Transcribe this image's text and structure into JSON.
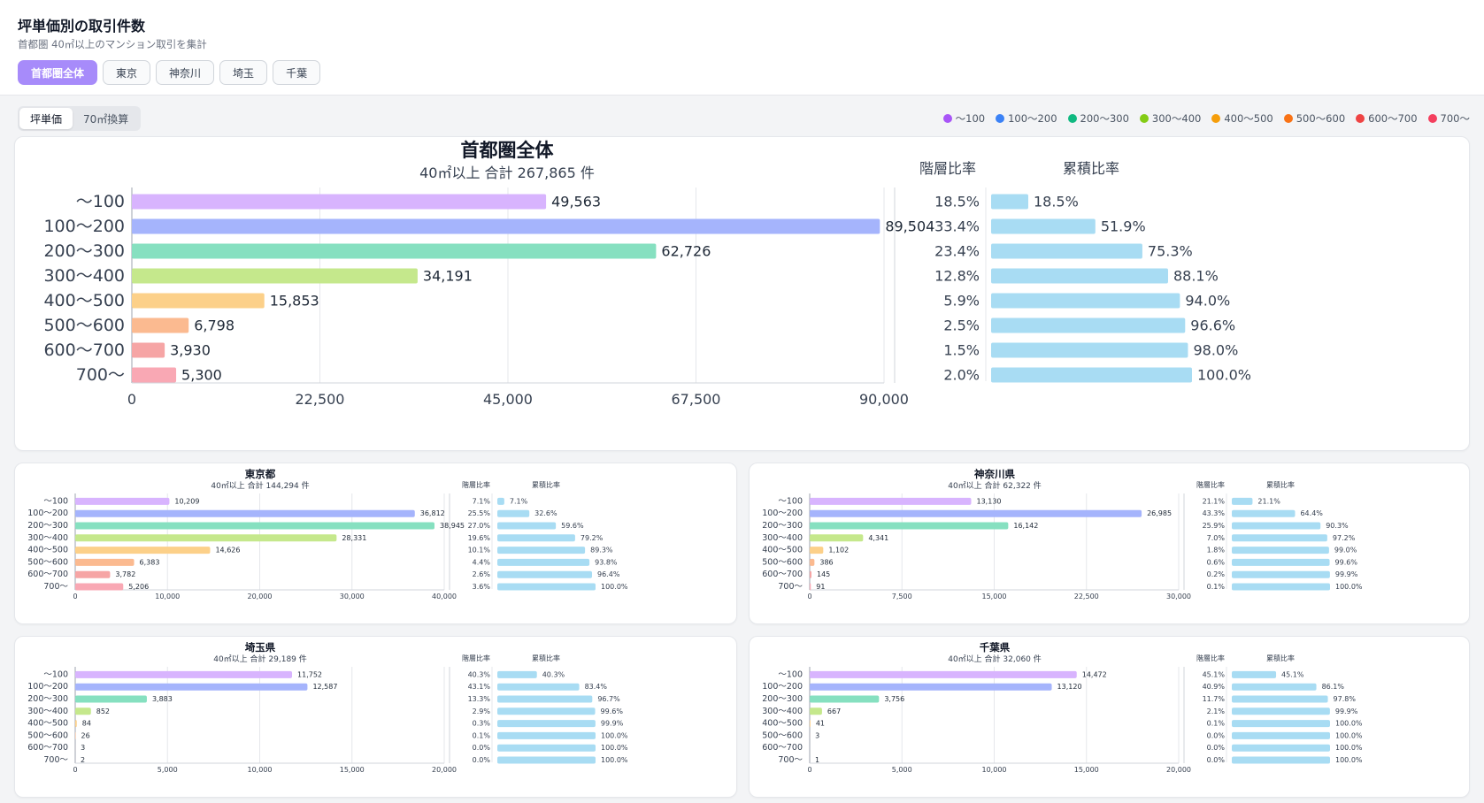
{
  "header": {
    "title": "坪単価別の取引件数",
    "subtitle": "首都圏 40㎡以上のマンション取引を集計",
    "region_tabs": [
      {
        "label": "首都圏全体",
        "active": true
      },
      {
        "label": "東京",
        "active": false
      },
      {
        "label": "神奈川",
        "active": false
      },
      {
        "label": "埼玉",
        "active": false
      },
      {
        "label": "千葉",
        "active": false
      }
    ]
  },
  "mode_tabs": [
    {
      "label": "坪単価",
      "active": true
    },
    {
      "label": "70㎡換算",
      "active": false
    }
  ],
  "legend": [
    {
      "label": "～100",
      "color": "#a855f7"
    },
    {
      "label": "100～200",
      "color": "#3b82f6"
    },
    {
      "label": "200～300",
      "color": "#10b981"
    },
    {
      "label": "300～400",
      "color": "#84cc16"
    },
    {
      "label": "400～500",
      "color": "#f59e0b"
    },
    {
      "label": "500～600",
      "color": "#f97316"
    },
    {
      "label": "600～700",
      "color": "#ef4444"
    },
    {
      "label": "700～",
      "color": "#f43f5e"
    }
  ],
  "bar_colors": [
    "#d8b4fe",
    "#a5b4fc",
    "#86e0c0",
    "#c5e88c",
    "#fcd089",
    "#fbba90",
    "#f6a5a5",
    "#f9a8b4"
  ],
  "ratio_color": "#a8dcf3",
  "chart_data": [
    {
      "type": "bar",
      "title": "首都圏全体",
      "subtitle": "40㎡以上 合計 267,865 件",
      "categories": [
        "～100",
        "100～200",
        "200～300",
        "300～400",
        "400～500",
        "500～600",
        "600～700",
        "700～"
      ],
      "values": [
        49563,
        89504,
        62726,
        34191,
        15853,
        6798,
        3930,
        5300
      ],
      "value_labels": [
        "49,563",
        "89,504",
        "62,726",
        "34,191",
        "15,853",
        "6,798",
        "3,930",
        "5,300"
      ],
      "xlim": [
        0,
        90000
      ],
      "xticks": [
        "0",
        "22,500",
        "45,000",
        "67,500",
        "90,000"
      ],
      "ratio_header": "階層比率",
      "ratio": [
        18.5,
        33.4,
        23.4,
        12.8,
        5.9,
        2.5,
        1.5,
        2.0
      ],
      "ratio_labels": [
        "18.5%",
        "33.4%",
        "23.4%",
        "12.8%",
        "5.9%",
        "2.5%",
        "1.5%",
        "2.0%"
      ],
      "cum_header": "累積比率",
      "cumulative": [
        18.5,
        51.9,
        75.3,
        88.1,
        94.0,
        96.6,
        98.0,
        100.0
      ],
      "cumulative_labels": [
        "18.5%",
        "51.9%",
        "75.3%",
        "88.1%",
        "94.0%",
        "96.6%",
        "98.0%",
        "100.0%"
      ]
    },
    {
      "type": "bar",
      "title": "東京都",
      "subtitle": "40㎡以上 合計 144,294 件",
      "categories": [
        "～100",
        "100～200",
        "200～300",
        "300～400",
        "400～500",
        "500～600",
        "600～700",
        "700～"
      ],
      "values": [
        10209,
        36812,
        38945,
        28331,
        14626,
        6383,
        3782,
        5206
      ],
      "value_labels": [
        "10,209",
        "36,812",
        "38,945",
        "28,331",
        "14,626",
        "6,383",
        "3,782",
        "5,206"
      ],
      "xlim": [
        0,
        40000
      ],
      "xticks": [
        "0",
        "10,000",
        "20,000",
        "30,000",
        "40,000"
      ],
      "ratio_header": "階層比率",
      "ratio": [
        7.1,
        25.5,
        27.0,
        19.6,
        10.1,
        4.4,
        2.6,
        3.6
      ],
      "ratio_labels": [
        "7.1%",
        "25.5%",
        "27.0%",
        "19.6%",
        "10.1%",
        "4.4%",
        "2.6%",
        "3.6%"
      ],
      "cum_header": "累積比率",
      "cumulative": [
        7.1,
        32.6,
        59.6,
        79.2,
        89.3,
        93.8,
        96.4,
        100.0
      ],
      "cumulative_labels": [
        "7.1%",
        "32.6%",
        "59.6%",
        "79.2%",
        "89.3%",
        "93.8%",
        "96.4%",
        "100.0%"
      ]
    },
    {
      "type": "bar",
      "title": "神奈川県",
      "subtitle": "40㎡以上 合計 62,322 件",
      "categories": [
        "～100",
        "100～200",
        "200～300",
        "300～400",
        "400～500",
        "500～600",
        "600～700",
        "700～"
      ],
      "values": [
        13130,
        26985,
        16142,
        4341,
        1102,
        386,
        145,
        91
      ],
      "value_labels": [
        "13,130",
        "26,985",
        "16,142",
        "4,341",
        "1,102",
        "386",
        "145",
        "91"
      ],
      "xlim": [
        0,
        30000
      ],
      "xticks": [
        "0",
        "7,500",
        "15,000",
        "22,500",
        "30,000"
      ],
      "ratio_header": "階層比率",
      "ratio": [
        21.1,
        43.3,
        25.9,
        7.0,
        1.8,
        0.6,
        0.2,
        0.1
      ],
      "ratio_labels": [
        "21.1%",
        "43.3%",
        "25.9%",
        "7.0%",
        "1.8%",
        "0.6%",
        "0.2%",
        "0.1%"
      ],
      "cum_header": "累積比率",
      "cumulative": [
        21.1,
        64.4,
        90.3,
        97.2,
        99.0,
        99.6,
        99.9,
        100.0
      ],
      "cumulative_labels": [
        "21.1%",
        "64.4%",
        "90.3%",
        "97.2%",
        "99.0%",
        "99.6%",
        "99.9%",
        "100.0%"
      ]
    },
    {
      "type": "bar",
      "title": "埼玉県",
      "subtitle": "40㎡以上 合計 29,189 件",
      "categories": [
        "～100",
        "100～200",
        "200～300",
        "300～400",
        "400～500",
        "500～600",
        "600～700",
        "700～"
      ],
      "values": [
        11752,
        12587,
        3883,
        852,
        84,
        26,
        3,
        2
      ],
      "value_labels": [
        "11,752",
        "12,587",
        "3,883",
        "852",
        "84",
        "26",
        "3",
        "2"
      ],
      "xlim": [
        0,
        20000
      ],
      "xticks": [
        "0",
        "5,000",
        "10,000",
        "15,000",
        "20,000"
      ],
      "ratio_header": "階層比率",
      "ratio": [
        40.3,
        43.1,
        13.3,
        2.9,
        0.3,
        0.1,
        0.0,
        0.0
      ],
      "ratio_labels": [
        "40.3%",
        "43.1%",
        "13.3%",
        "2.9%",
        "0.3%",
        "0.1%",
        "0.0%",
        "0.0%"
      ],
      "cum_header": "累積比率",
      "cumulative": [
        40.3,
        83.4,
        96.7,
        99.6,
        99.9,
        100.0,
        100.0,
        100.0
      ],
      "cumulative_labels": [
        "40.3%",
        "83.4%",
        "96.7%",
        "99.6%",
        "99.9%",
        "100.0%",
        "100.0%",
        "100.0%"
      ]
    },
    {
      "type": "bar",
      "title": "千葉県",
      "subtitle": "40㎡以上 合計 32,060 件",
      "categories": [
        "～100",
        "100～200",
        "200～300",
        "300～400",
        "400～500",
        "500～600",
        "600～700",
        "700～"
      ],
      "values": [
        14472,
        13120,
        3756,
        667,
        41,
        3,
        0,
        1
      ],
      "value_labels": [
        "14,472",
        "13,120",
        "3,756",
        "667",
        "41",
        "3",
        "",
        "1"
      ],
      "xlim": [
        0,
        20000
      ],
      "xticks": [
        "0",
        "5,000",
        "10,000",
        "15,000",
        "20,000"
      ],
      "ratio_header": "階層比率",
      "ratio": [
        45.1,
        40.9,
        11.7,
        2.1,
        0.1,
        0.0,
        0.0,
        0.0
      ],
      "ratio_labels": [
        "45.1%",
        "40.9%",
        "11.7%",
        "2.1%",
        "0.1%",
        "0.0%",
        "0.0%",
        "0.0%"
      ],
      "cum_header": "累積比率",
      "cumulative": [
        45.1,
        86.1,
        97.8,
        99.9,
        100.0,
        100.0,
        100.0,
        100.0
      ],
      "cumulative_labels": [
        "45.1%",
        "86.1%",
        "97.8%",
        "99.9%",
        "100.0%",
        "100.0%",
        "100.0%",
        "100.0%"
      ]
    }
  ]
}
